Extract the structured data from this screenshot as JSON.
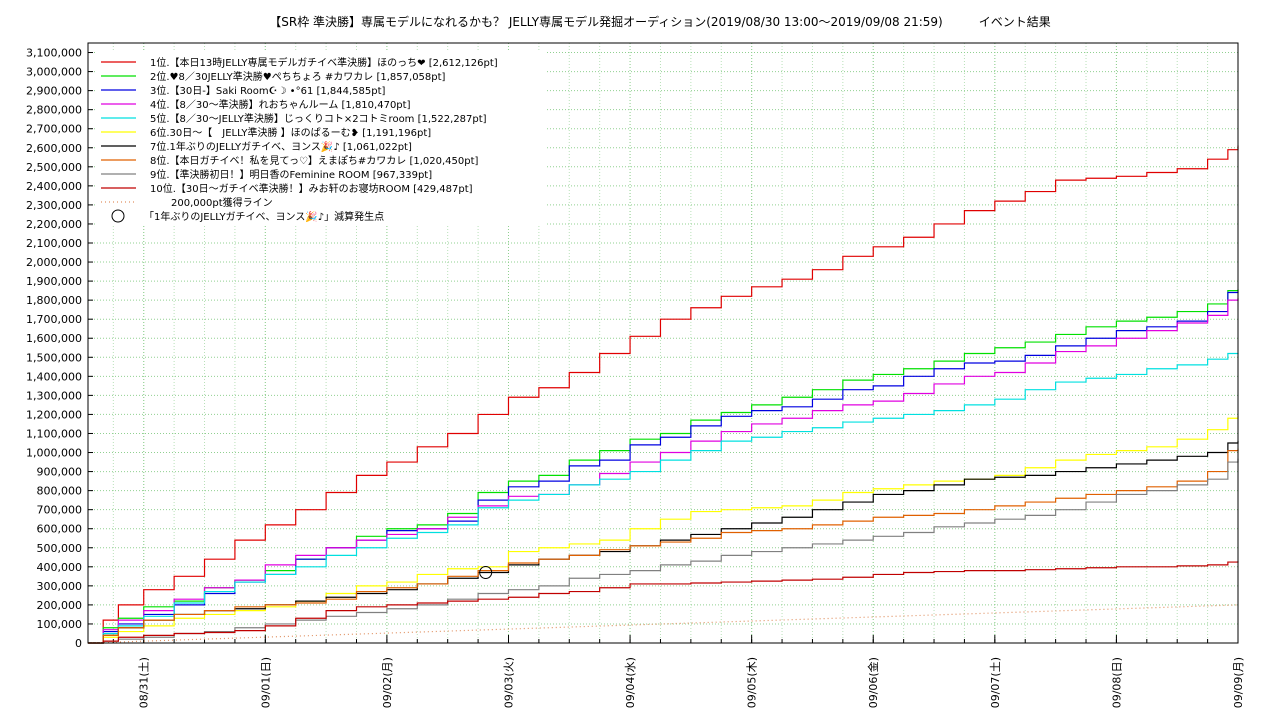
{
  "chart_data": {
    "type": "line",
    "title": "【SR枠 準決勝】専属モデルになれるかも？ JELLY専属モデル発掘オーディション(2019/08/30 13:00〜2019/09/08 21:59)　　　イベント結果",
    "xlabel": "",
    "ylabel": "",
    "ylim": [
      0,
      3150000
    ],
    "y_ticks": [
      0,
      100000,
      200000,
      300000,
      400000,
      500000,
      600000,
      700000,
      800000,
      900000,
      1000000,
      1100000,
      1200000,
      1300000,
      1400000,
      1500000,
      1600000,
      1700000,
      1800000,
      1900000,
      2000000,
      2100000,
      2200000,
      2300000,
      2400000,
      2500000,
      2600000,
      2700000,
      2800000,
      2900000,
      3000000,
      3100000
    ],
    "y_tick_labels": [
      "0",
      "100,000",
      "200,000",
      "300,000",
      "400,000",
      "500,000",
      "600,000",
      "700,000",
      "800,000",
      "900,000",
      "1,000,000",
      "1,100,000",
      "1,200,000",
      "1,300,000",
      "1,400,000",
      "1,500,000",
      "1,600,000",
      "1,700,000",
      "1,800,000",
      "1,900,000",
      "2,000,000",
      "2,100,000",
      "2,200,000",
      "2,300,000",
      "2,400,000",
      "2,500,000",
      "2,600,000",
      "2,700,000",
      "2,800,000",
      "2,900,000",
      "3,000,000",
      "3,100,000"
    ],
    "x_range_hours": [
      0,
      227
    ],
    "x_ticks": [
      {
        "h": 11,
        "label": "08/31(土)"
      },
      {
        "h": 35,
        "label": "09/01(日)"
      },
      {
        "h": 59,
        "label": "09/02(月)"
      },
      {
        "h": 83,
        "label": "09/03(火)"
      },
      {
        "h": 107,
        "label": "09/04(水)"
      },
      {
        "h": 131,
        "label": "09/05(木)"
      },
      {
        "h": 155,
        "label": "09/06(金)"
      },
      {
        "h": 179,
        "label": "09/07(土)"
      },
      {
        "h": 203,
        "label": "09/08(日)"
      },
      {
        "h": 227,
        "label": "09/09(月)"
      }
    ],
    "grid": true,
    "legend_position": "top-left",
    "series": [
      {
        "name": "1位.【本日13時JELLY専属モデルガチイベ準決勝】ほのっち❤ [2,612,126pt]",
        "color": "#e00000",
        "x": [
          0,
          3,
          6,
          11,
          17,
          23,
          29,
          35,
          41,
          47,
          53,
          59,
          65,
          71,
          77,
          83,
          89,
          95,
          101,
          107,
          113,
          119,
          125,
          131,
          137,
          143,
          149,
          155,
          161,
          167,
          173,
          179,
          185,
          191,
          197,
          203,
          209,
          215,
          221,
          225,
          227
        ],
        "y": [
          0,
          120000,
          200000,
          280000,
          350000,
          440000,
          540000,
          620000,
          700000,
          790000,
          880000,
          950000,
          1030000,
          1100000,
          1200000,
          1290000,
          1340000,
          1420000,
          1520000,
          1610000,
          1700000,
          1760000,
          1820000,
          1870000,
          1910000,
          1960000,
          2030000,
          2080000,
          2130000,
          2200000,
          2270000,
          2320000,
          2370000,
          2430000,
          2440000,
          2450000,
          2470000,
          2490000,
          2540000,
          2590000,
          2612126
        ]
      },
      {
        "name": "2位.♥8／30JELLY準決勝♥ぺちちょろ #カワカレ [1,857,058pt]",
        "color": "#00e000",
        "x": [
          0,
          3,
          6,
          11,
          17,
          23,
          29,
          35,
          41,
          47,
          53,
          59,
          65,
          71,
          77,
          83,
          89,
          95,
          101,
          107,
          113,
          119,
          125,
          131,
          137,
          143,
          149,
          155,
          161,
          167,
          173,
          179,
          185,
          191,
          197,
          203,
          209,
          215,
          221,
          225,
          227
        ],
        "y": [
          0,
          80000,
          130000,
          190000,
          220000,
          290000,
          330000,
          380000,
          440000,
          500000,
          560000,
          600000,
          620000,
          680000,
          790000,
          850000,
          880000,
          960000,
          1010000,
          1070000,
          1100000,
          1170000,
          1210000,
          1250000,
          1290000,
          1330000,
          1380000,
          1410000,
          1440000,
          1480000,
          1520000,
          1550000,
          1580000,
          1620000,
          1660000,
          1690000,
          1710000,
          1740000,
          1780000,
          1850000,
          1857058
        ]
      },
      {
        "name": "3位.【30日-】Saki Room☪☽ •°61 [1,844,585pt]",
        "color": "#0000e0",
        "x": [
          0,
          3,
          6,
          11,
          17,
          23,
          29,
          35,
          41,
          47,
          53,
          59,
          65,
          71,
          77,
          83,
          89,
          95,
          101,
          107,
          113,
          119,
          125,
          131,
          137,
          143,
          149,
          155,
          161,
          167,
          173,
          179,
          185,
          191,
          197,
          203,
          209,
          215,
          221,
          225,
          227
        ],
        "y": [
          0,
          60000,
          100000,
          150000,
          200000,
          260000,
          320000,
          360000,
          440000,
          500000,
          540000,
          590000,
          600000,
          640000,
          750000,
          820000,
          850000,
          930000,
          960000,
          1040000,
          1080000,
          1140000,
          1190000,
          1220000,
          1240000,
          1280000,
          1330000,
          1350000,
          1400000,
          1440000,
          1470000,
          1480000,
          1510000,
          1560000,
          1600000,
          1640000,
          1660000,
          1690000,
          1740000,
          1840000,
          1844585
        ]
      },
      {
        "name": "4位.【8／30〜準決勝】れおちゃんルーム [1,810,470pt]",
        "color": "#e000e0",
        "x": [
          0,
          3,
          6,
          11,
          17,
          23,
          29,
          35,
          41,
          47,
          53,
          59,
          65,
          71,
          77,
          83,
          89,
          95,
          101,
          107,
          113,
          119,
          125,
          131,
          137,
          143,
          149,
          155,
          161,
          167,
          173,
          179,
          185,
          191,
          197,
          203,
          209,
          215,
          221,
          225,
          227
        ],
        "y": [
          0,
          70000,
          120000,
          170000,
          230000,
          290000,
          330000,
          410000,
          460000,
          500000,
          540000,
          570000,
          600000,
          660000,
          720000,
          770000,
          780000,
          830000,
          890000,
          950000,
          1000000,
          1060000,
          1110000,
          1150000,
          1180000,
          1220000,
          1250000,
          1270000,
          1310000,
          1360000,
          1400000,
          1420000,
          1470000,
          1530000,
          1560000,
          1600000,
          1640000,
          1680000,
          1720000,
          1800000,
          1810470
        ]
      },
      {
        "name": "5位.【8／30〜JELLY準決勝】じっくりコト×2コトミroom [1,522,287pt]",
        "color": "#00e0e0",
        "x": [
          0,
          3,
          6,
          11,
          17,
          23,
          29,
          35,
          41,
          47,
          53,
          59,
          65,
          71,
          77,
          83,
          89,
          95,
          101,
          107,
          113,
          119,
          125,
          131,
          137,
          143,
          149,
          155,
          161,
          167,
          173,
          179,
          185,
          191,
          197,
          203,
          209,
          215,
          221,
          225,
          227
        ],
        "y": [
          0,
          50000,
          90000,
          140000,
          210000,
          270000,
          320000,
          360000,
          400000,
          460000,
          500000,
          550000,
          580000,
          620000,
          710000,
          750000,
          780000,
          830000,
          860000,
          900000,
          960000,
          1010000,
          1060000,
          1080000,
          1110000,
          1130000,
          1160000,
          1180000,
          1200000,
          1220000,
          1250000,
          1280000,
          1330000,
          1370000,
          1390000,
          1410000,
          1440000,
          1460000,
          1490000,
          1520000,
          1522287
        ]
      },
      {
        "name": "6位.30日〜【　JELLY準決勝 】ほのぱるーむ❥ [1,191,196pt]",
        "color": "#ffff00",
        "x": [
          0,
          3,
          6,
          11,
          17,
          23,
          29,
          35,
          41,
          47,
          53,
          59,
          65,
          71,
          77,
          83,
          89,
          95,
          101,
          107,
          113,
          119,
          125,
          131,
          137,
          143,
          149,
          155,
          161,
          167,
          173,
          179,
          185,
          191,
          197,
          203,
          209,
          215,
          221,
          225,
          227
        ],
        "y": [
          0,
          30000,
          60000,
          90000,
          130000,
          150000,
          170000,
          190000,
          220000,
          260000,
          300000,
          320000,
          360000,
          390000,
          400000,
          480000,
          500000,
          520000,
          540000,
          600000,
          650000,
          690000,
          700000,
          710000,
          720000,
          750000,
          790000,
          810000,
          830000,
          850000,
          860000,
          880000,
          920000,
          960000,
          990000,
          1010000,
          1030000,
          1070000,
          1120000,
          1180000,
          1191196
        ]
      },
      {
        "name": "7位.1年ぶりのJELLYガチイベ、ヨンス🎉♪ [1,061,022pt]",
        "color": "#000000",
        "x": [
          0,
          3,
          6,
          11,
          17,
          23,
          29,
          35,
          41,
          47,
          53,
          59,
          65,
          71,
          77,
          83,
          89,
          95,
          101,
          107,
          113,
          119,
          125,
          131,
          137,
          143,
          149,
          155,
          161,
          167,
          173,
          179,
          185,
          191,
          197,
          203,
          209,
          215,
          221,
          225,
          227
        ],
        "y": [
          0,
          40000,
          80000,
          120000,
          150000,
          170000,
          180000,
          200000,
          220000,
          240000,
          260000,
          280000,
          310000,
          340000,
          370000,
          410000,
          440000,
          460000,
          480000,
          510000,
          540000,
          570000,
          600000,
          630000,
          660000,
          700000,
          740000,
          780000,
          800000,
          830000,
          860000,
          870000,
          880000,
          900000,
          920000,
          940000,
          960000,
          980000,
          1000000,
          1050000,
          1061022
        ]
      },
      {
        "name": "8位.【本日ガチイベ！私を見てっ♡】えまぽち#カワカレ [1,020,450pt]",
        "color": "#e06000",
        "x": [
          0,
          3,
          6,
          11,
          17,
          23,
          29,
          35,
          41,
          47,
          53,
          59,
          65,
          71,
          77,
          83,
          89,
          95,
          101,
          107,
          113,
          119,
          125,
          131,
          137,
          143,
          149,
          155,
          161,
          167,
          173,
          179,
          185,
          191,
          197,
          203,
          209,
          215,
          221,
          225,
          227
        ],
        "y": [
          0,
          40000,
          80000,
          120000,
          150000,
          170000,
          190000,
          200000,
          210000,
          230000,
          270000,
          290000,
          310000,
          350000,
          380000,
          420000,
          440000,
          460000,
          490000,
          510000,
          530000,
          550000,
          580000,
          590000,
          600000,
          620000,
          640000,
          660000,
          670000,
          680000,
          700000,
          720000,
          740000,
          760000,
          780000,
          800000,
          820000,
          850000,
          900000,
          1010000,
          1020450
        ]
      },
      {
        "name": "9位.【準決勝初日！】明日香のFeminine ROOM [967,339pt]",
        "color": "#808080",
        "x": [
          0,
          3,
          6,
          11,
          17,
          23,
          29,
          35,
          41,
          47,
          53,
          59,
          65,
          71,
          77,
          83,
          89,
          95,
          101,
          107,
          113,
          119,
          125,
          131,
          137,
          143,
          149,
          155,
          161,
          167,
          173,
          179,
          185,
          191,
          197,
          203,
          209,
          215,
          221,
          225,
          227
        ],
        "y": [
          0,
          10000,
          20000,
          30000,
          50000,
          60000,
          80000,
          100000,
          120000,
          140000,
          160000,
          180000,
          200000,
          230000,
          260000,
          280000,
          300000,
          340000,
          360000,
          380000,
          410000,
          430000,
          460000,
          480000,
          500000,
          520000,
          540000,
          560000,
          580000,
          610000,
          630000,
          650000,
          670000,
          700000,
          740000,
          780000,
          800000,
          830000,
          860000,
          950000,
          967339
        ]
      },
      {
        "name": "10位.【30日〜ガチイベ準決勝！】みお轩のお寝坊ROOM [429,487pt]",
        "color": "#c00000",
        "x": [
          0,
          3,
          6,
          11,
          17,
          23,
          29,
          35,
          41,
          47,
          53,
          59,
          65,
          71,
          77,
          83,
          89,
          95,
          101,
          107,
          113,
          119,
          125,
          131,
          137,
          143,
          149,
          155,
          161,
          167,
          173,
          179,
          185,
          191,
          197,
          203,
          209,
          215,
          221,
          225,
          227
        ],
        "y": [
          0,
          10000,
          30000,
          40000,
          50000,
          55000,
          65000,
          90000,
          130000,
          170000,
          190000,
          200000,
          210000,
          220000,
          230000,
          240000,
          260000,
          270000,
          290000,
          310000,
          310000,
          315000,
          320000,
          325000,
          330000,
          335000,
          345000,
          360000,
          370000,
          375000,
          380000,
          380000,
          385000,
          390000,
          395000,
          400000,
          400000,
          405000,
          410000,
          425000,
          429487
        ]
      },
      {
        "name": "200,000pt獲得ライン",
        "color": "#e09060",
        "dotted": true,
        "x": [
          0,
          227
        ],
        "y": [
          0,
          200000
        ]
      }
    ],
    "annotations": [
      {
        "label": "「1年ぶりのJELLYガチイベ、ヨンス🎉♪」減算発生点",
        "x": 78.5,
        "y": 370000,
        "marker": "circle"
      }
    ]
  }
}
